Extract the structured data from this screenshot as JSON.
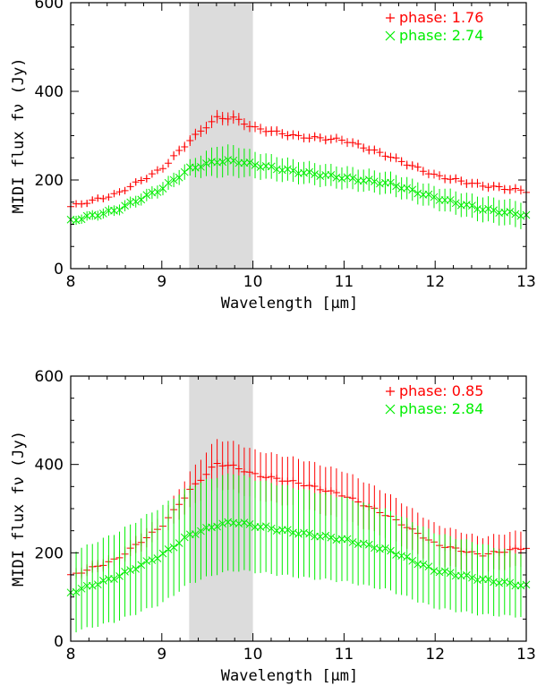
{
  "chart_data": [
    {
      "type": "scatter",
      "xlabel": "Wavelength [μm]",
      "ylabel": "MIDI flux fν (Jy)",
      "xlim": [
        8,
        13
      ],
      "ylim": [
        0,
        600
      ],
      "xticks": [
        "8",
        "9",
        "10",
        "11",
        "12",
        "13"
      ],
      "yticks": [
        "0",
        "200",
        "400",
        "600"
      ],
      "shaded_band": [
        9.3,
        10.0
      ],
      "legend_position": "top-right",
      "series": [
        {
          "name": "phase: 1.76",
          "color": "#ff0000",
          "marker": "plus",
          "x_start": 8.0,
          "x_end": 13.0,
          "anchors_x": [
            8.0,
            8.5,
            9.0,
            9.3,
            9.6,
            9.8,
            10.0,
            10.5,
            11.0,
            11.5,
            12.0,
            12.5,
            13.0
          ],
          "anchors_y": [
            140,
            168,
            225,
            288,
            340,
            340,
            318,
            298,
            290,
            253,
            210,
            188,
            175
          ],
          "errors": [
            8,
            8,
            9,
            12,
            15,
            15,
            12,
            10,
            10,
            10,
            10,
            10,
            10
          ]
        },
        {
          "name": "phase: 2.74",
          "color": "#00ee00",
          "marker": "x",
          "x_start": 8.0,
          "x_end": 13.0,
          "anchors_x": [
            8.0,
            8.5,
            9.0,
            9.3,
            9.6,
            9.8,
            10.0,
            10.5,
            11.0,
            11.5,
            12.0,
            12.5,
            13.0
          ],
          "anchors_y": [
            108,
            132,
            180,
            225,
            242,
            243,
            235,
            218,
            205,
            192,
            160,
            135,
            120
          ],
          "errors": [
            10,
            12,
            15,
            18,
            35,
            35,
            30,
            25,
            25,
            25,
            25,
            28,
            30
          ]
        }
      ]
    },
    {
      "type": "scatter",
      "xlabel": "Wavelength [μm]",
      "ylabel": "MIDI flux fν (Jy)",
      "xlim": [
        8,
        13
      ],
      "ylim": [
        0,
        600
      ],
      "xticks": [
        "8",
        "9",
        "10",
        "11",
        "12",
        "13"
      ],
      "yticks": [
        "0",
        "200",
        "400",
        "600"
      ],
      "shaded_band": [
        9.3,
        10.0
      ],
      "legend_position": "top-right",
      "series": [
        {
          "name": "phase: 0.85",
          "color": "#ff0000",
          "marker": "plus",
          "x_start": 8.0,
          "x_end": 13.0,
          "anchors_x": [
            8.0,
            8.5,
            9.0,
            9.3,
            9.6,
            9.8,
            10.0,
            10.5,
            11.0,
            11.5,
            12.0,
            12.5,
            13.0
          ],
          "anchors_y": [
            148,
            185,
            260,
            340,
            402,
            395,
            378,
            358,
            330,
            282,
            220,
            195,
            212
          ],
          "errors": [
            12,
            15,
            25,
            40,
            55,
            55,
            55,
            55,
            55,
            50,
            45,
            40,
            40
          ]
        },
        {
          "name": "phase: 2.84",
          "color": "#00ee00",
          "marker": "x",
          "x_start": 8.0,
          "x_end": 13.0,
          "anchors_x": [
            8.0,
            8.5,
            9.0,
            9.3,
            9.6,
            9.8,
            10.0,
            10.5,
            11.0,
            11.5,
            12.0,
            12.5,
            13.0
          ],
          "anchors_y": [
            110,
            145,
            195,
            240,
            262,
            270,
            262,
            245,
            230,
            205,
            160,
            140,
            125
          ],
          "errors": [
            90,
            100,
            110,
            110,
            110,
            110,
            105,
            100,
            95,
            90,
            85,
            80,
            70
          ]
        }
      ]
    }
  ]
}
